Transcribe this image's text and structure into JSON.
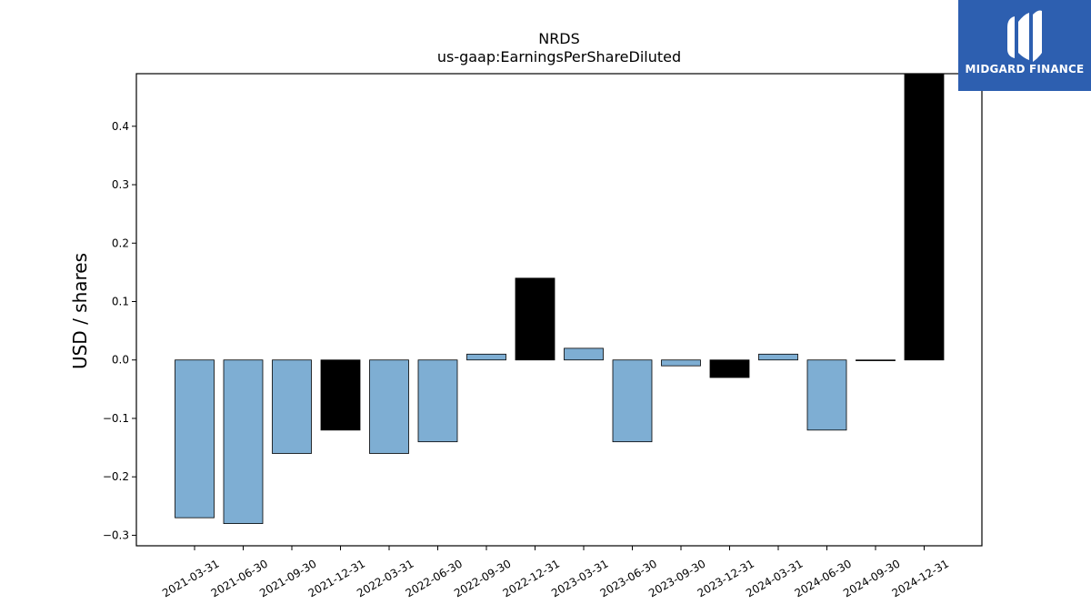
{
  "chart_data": {
    "type": "bar",
    "title": "NRDS",
    "subtitle": "us-gaap:EarningsPerShareDiluted",
    "xlabel": "",
    "ylabel": "USD / shares",
    "ylim": [
      -0.318,
      0.49
    ],
    "yticks": [
      -0.3,
      -0.2,
      -0.1,
      0.0,
      0.1,
      0.2,
      0.3,
      0.4
    ],
    "ytick_labels": [
      "−0.3",
      "−0.2",
      "−0.1",
      "0.0",
      "0.1",
      "0.2",
      "0.3",
      "0.4"
    ],
    "categories": [
      "2021-03-31",
      "2021-06-30",
      "2021-09-30",
      "2021-12-31",
      "2022-03-31",
      "2022-06-30",
      "2022-09-30",
      "2022-12-31",
      "2023-03-31",
      "2023-06-30",
      "2023-09-30",
      "2023-12-31",
      "2024-03-31",
      "2024-06-30",
      "2024-09-30",
      "2024-12-31"
    ],
    "values": [
      -0.27,
      -0.28,
      -0.16,
      -0.12,
      -0.16,
      -0.14,
      0.01,
      0.14,
      0.02,
      -0.14,
      -0.01,
      -0.03,
      0.01,
      -0.12,
      0.0,
      0.49
    ],
    "bar_colors": [
      "#7eaed3",
      "#7eaed3",
      "#7eaed3",
      "#000000",
      "#7eaed3",
      "#7eaed3",
      "#7eaed3",
      "#000000",
      "#7eaed3",
      "#7eaed3",
      "#7eaed3",
      "#000000",
      "#7eaed3",
      "#7eaed3",
      "#7eaed3",
      "#000000"
    ],
    "grid": false,
    "legend": "none"
  },
  "logo": {
    "text": "MIDGARD FINANCE",
    "background": "#2d5fb0"
  }
}
